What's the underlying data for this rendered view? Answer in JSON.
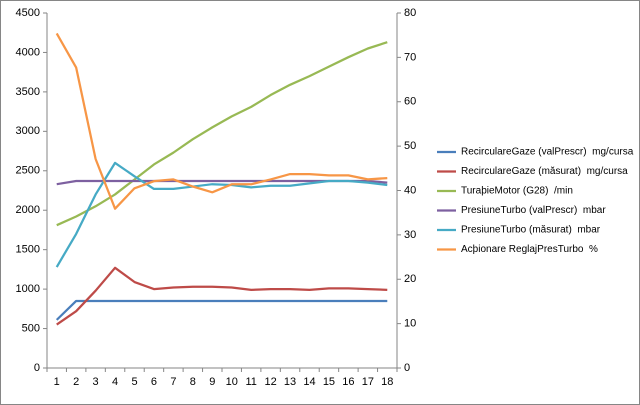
{
  "chart_data": {
    "type": "line",
    "categories": [
      1,
      2,
      3,
      4,
      5,
      6,
      7,
      8,
      9,
      10,
      11,
      12,
      13,
      14,
      15,
      16,
      17,
      18
    ],
    "ylim": [
      0,
      4500
    ],
    "yticks": [
      0,
      500,
      1000,
      1500,
      2000,
      2500,
      3000,
      3500,
      4000,
      4500
    ],
    "y2lim": [
      0,
      80
    ],
    "y2ticks": [
      0,
      10,
      20,
      30,
      40,
      50,
      60,
      70,
      80
    ],
    "grid": false,
    "legend": "right",
    "series": [
      {
        "name": "RecirculareGaze (valPrescr)  mg/cursa",
        "color": "#4a7ebb",
        "values": [
          610,
          850,
          850,
          850,
          850,
          850,
          850,
          850,
          850,
          850,
          850,
          850,
          850,
          850,
          850,
          850,
          850,
          850
        ]
      },
      {
        "name": "RecirculareGaze (măsurat)  mg/cursa",
        "color": "#be4b48",
        "values": [
          550,
          720,
          980,
          1270,
          1090,
          1000,
          1020,
          1030,
          1030,
          1020,
          990,
          1000,
          1000,
          990,
          1010,
          1010,
          1000,
          990
        ]
      },
      {
        "name": "TuraþieMotor (G28)  /min",
        "color": "#98b954",
        "values": [
          1810,
          1920,
          2050,
          2200,
          2390,
          2580,
          2730,
          2900,
          3050,
          3190,
          3310,
          3460,
          3590,
          3700,
          3820,
          3940,
          4050,
          4130
        ]
      },
      {
        "name": "PresiuneTurbo (valPrescr)  mbar",
        "color": "#7d60a0",
        "values": [
          2330,
          2370,
          2370,
          2370,
          2370,
          2370,
          2370,
          2370,
          2370,
          2370,
          2370,
          2370,
          2370,
          2370,
          2370,
          2370,
          2370,
          2350
        ]
      },
      {
        "name": "PresiuneTurbo (măsurat)  mbar",
        "color": "#46aac5",
        "values": [
          1280,
          1700,
          2200,
          2600,
          2430,
          2270,
          2270,
          2300,
          2330,
          2320,
          2290,
          2310,
          2310,
          2340,
          2370,
          2370,
          2350,
          2320
        ]
      },
      {
        "name": "Acþionare ReglajPresTurbo  %",
        "color": "#f79646",
        "axis": "y2",
        "values": [
          75.4,
          67.7,
          47.1,
          35.9,
          40.5,
          42.1,
          42.5,
          40.9,
          39.6,
          41.4,
          41.4,
          42.5,
          43.7,
          43.7,
          43.4,
          43.4,
          42.5,
          42.8
        ]
      }
    ]
  }
}
